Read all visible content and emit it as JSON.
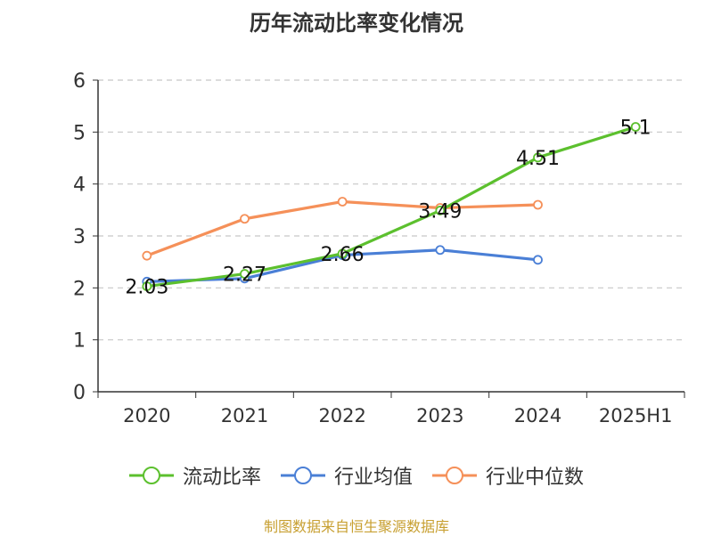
{
  "chart_data": {
    "type": "line",
    "title": "历年流动比率变化情况",
    "categories": [
      "2020",
      "2021",
      "2022",
      "2023",
      "2024",
      "2025H1"
    ],
    "ylim": [
      0,
      6
    ],
    "yticks": [
      "0",
      "1",
      "2",
      "3",
      "4",
      "5",
      "6"
    ],
    "grid": true,
    "legend_position": "bottom",
    "series": [
      {
        "name": "流动比率",
        "color": "#5cc02e",
        "values": [
          2.03,
          2.27,
          2.66,
          3.49,
          4.51,
          5.1
        ],
        "labels": [
          "2.03",
          "2.27",
          "2.66",
          "3.49",
          "4.51",
          "5.1"
        ]
      },
      {
        "name": "行业均值",
        "color": "#4a7fd6",
        "values": [
          2.12,
          2.18,
          2.63,
          2.73,
          2.54,
          null
        ]
      },
      {
        "name": "行业中位数",
        "color": "#f59059",
        "values": [
          2.62,
          3.33,
          3.66,
          3.54,
          3.6,
          null
        ]
      }
    ]
  },
  "footer": {
    "source": "制图数据来自恒生聚源数据库"
  }
}
